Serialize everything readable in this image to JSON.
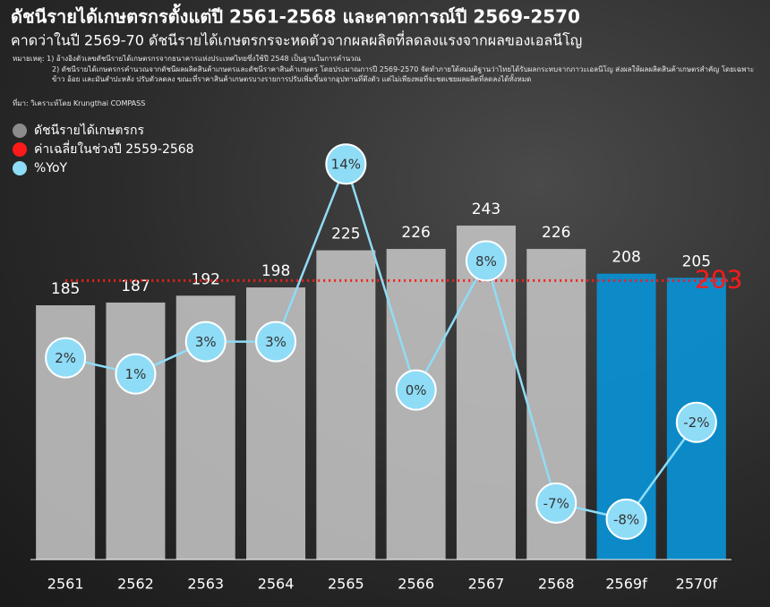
{
  "chart_data": {
    "type": "bar",
    "title": "ดัชนีรายได้เกษตรกรตั้งแต่ปี 2561-2568 และคาดการณ์ปี 2569-2570",
    "subtitle": "คาดว่าในปี 2569-70 ดัชนีรายได้เกษตรกรจะหดตัวจากผลผลิตที่ลดลงแรงจากผลของเอลนีโญ",
    "notes": [
      "หมายเหตุ: 1) อ้างอิงตัวเลขดัชนีรายได้เกษตรกรจากธนาคารแห่งประเทศไทยซึ่งใช้ปี 2548 เป็นฐานในการคำนวณ",
      "2) ดัชนีรายได้เกษตรกรคำนวณจากดัชนีผลผลิตสินค้าเกษตรและดัชนีราคาสินค้าเกษตร โดยประมาณการปี 2569-2570 จัดทำภายใต้สมมติฐานว่าไทยได้รับผลกระทบจากภาวะเอลนีโญ ส่งผลให้ผลผลิตสินค้าเกษตรสำคัญ โดยเฉพาะข้าว อ้อย และมันสำปะหลัง ปรับตัวลดลง ขณะที่ราคาสินค้าเกษตรบางรายการปรับเพิ่มขึ้นจากอุปทานที่ตึงตัว แต่ไม่เพียงพอที่จะชดเชยผลผลิตที่ลดลงได้ทั้งหมด"
    ],
    "source": "ที่มา: วิเคราะห์โดย Krungthai COMPASS",
    "categories": [
      "2561",
      "2562",
      "2563",
      "2564",
      "2565",
      "2566",
      "2567",
      "2568",
      "2569f",
      "2570f"
    ],
    "series": [
      {
        "name": "ดัชนีรายได้เกษตรกร",
        "color": "#8c8c8c",
        "values": [
          185,
          187,
          192,
          198,
          225,
          226,
          243,
          226,
          208,
          205
        ],
        "colors": [
          "#c9c9c9",
          "#c9c9c9",
          "#c9c9c9",
          "#c9c9c9",
          "#c9c9c9",
          "#c9c9c9",
          "#c9c9c9",
          "#c9c9c9",
          "#0a8fd0",
          "#0a8fd0"
        ]
      },
      {
        "name": "ค่าเฉลี่ยในช่วงปี 2559-2568",
        "color": "#ff1a1a",
        "value": 203
      },
      {
        "name": "%YoY",
        "color": "#8fdcf7",
        "axis": "y2",
        "values": [
          2,
          1,
          3,
          3,
          14,
          0,
          8,
          -7,
          -8,
          -2
        ],
        "value_labels": [
          "2%",
          "1%",
          "3%",
          "3%",
          "14%",
          "0%",
          "8%",
          "-7%",
          "-8%",
          "-2%"
        ]
      }
    ],
    "ylim": [
      0,
      370
    ],
    "y2lim": [
      -10.5,
      21
    ]
  }
}
